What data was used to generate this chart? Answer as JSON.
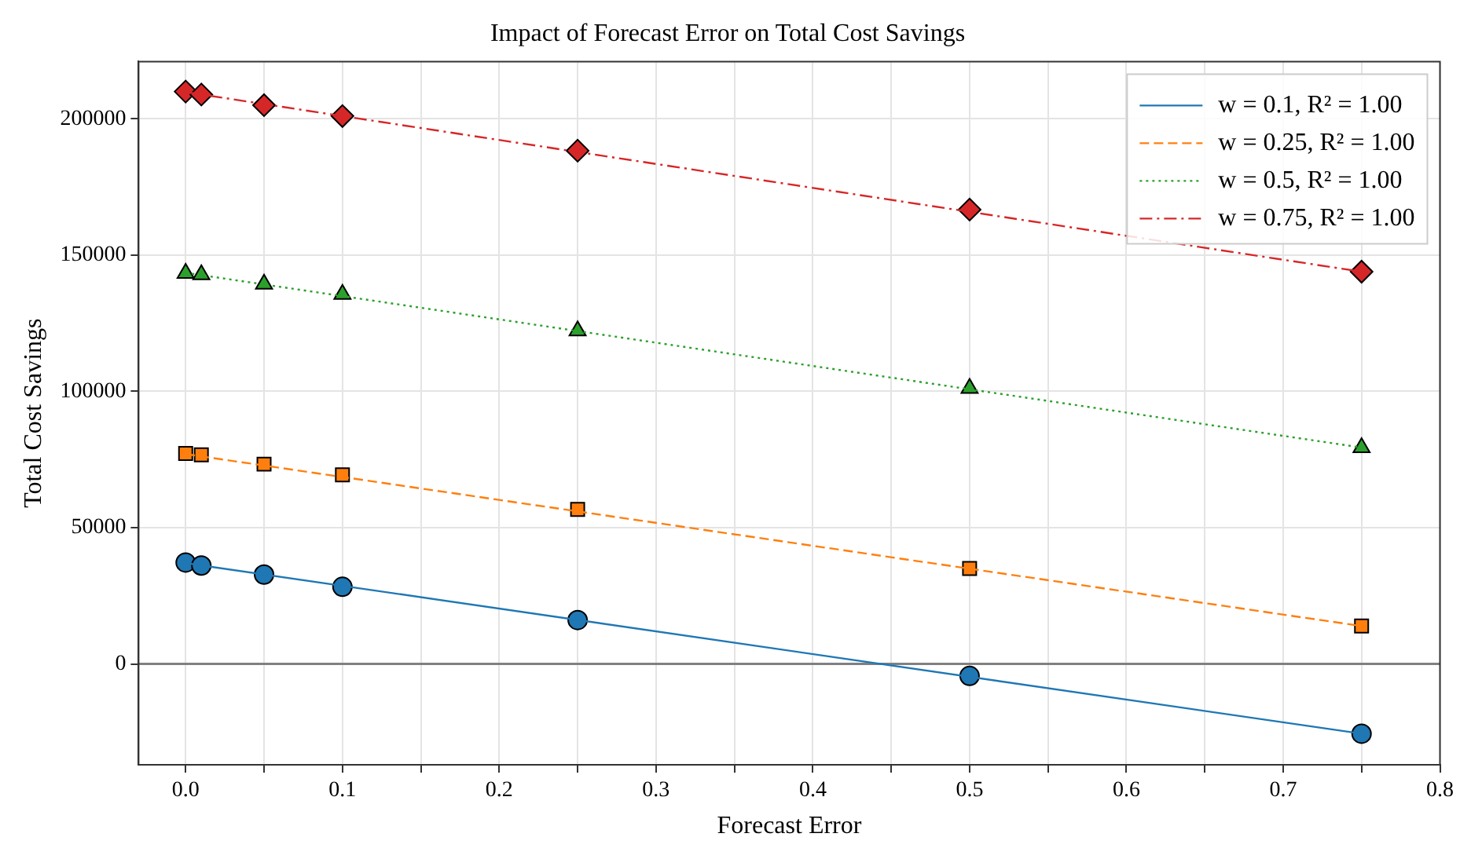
{
  "chart_data": {
    "type": "scatter",
    "title": "Impact of Forecast Error on Total Cost Savings",
    "xlabel": "Forecast Error",
    "ylabel": "Total Cost Savings",
    "xlim": [
      -0.03,
      0.8
    ],
    "ylim": [
      -37000,
      221000
    ],
    "xticks": [
      {
        "value": 0,
        "label": "0.0"
      },
      {
        "value": 0.05,
        "label": null
      },
      0.1,
      {
        "value": 0.15,
        "label": null
      },
      0.2,
      {
        "value": 0.25,
        "label": null
      },
      0.3,
      {
        "value": 0.35,
        "label": null
      },
      0.4,
      {
        "value": 0.45,
        "label": null
      },
      0.5,
      {
        "value": 0.55,
        "label": null
      },
      0.6,
      {
        "value": 0.65,
        "label": null
      },
      0.7,
      {
        "value": 0.75,
        "label": null
      },
      0.8
    ],
    "yticks": [
      0,
      50000,
      100000,
      150000,
      200000
    ],
    "grid": true,
    "legend": "top right",
    "ref_lines": [
      {
        "axis": "y",
        "value": 0,
        "color": "#808080"
      }
    ],
    "series": [
      {
        "name": "w = 0.1, R² = 1.00",
        "type": "line",
        "color": "#1f77b4",
        "marker": "none",
        "line_style": "solid",
        "x": [
          0,
          0.75
        ],
        "values": [
          37000,
          -25600
        ]
      },
      {
        "name": "w = 0.25, R² = 1.00",
        "type": "line",
        "color": "#ff7f0e",
        "marker": "none",
        "line_style": "dashed",
        "x": [
          0,
          0.75
        ],
        "values": [
          77000,
          13900
        ]
      },
      {
        "name": "w = 0.5, R² = 1.00",
        "type": "line",
        "color": "#2ca02c",
        "marker": "none",
        "line_style": "dotted",
        "x": [
          0,
          0.75
        ],
        "values": [
          143500,
          79400
        ]
      },
      {
        "name": "w = 0.75, R² = 1.00",
        "type": "line",
        "color": "#d62728",
        "marker": "none",
        "line_style": "dashdot",
        "x": [
          0,
          0.75
        ],
        "values": [
          209800,
          143900
        ]
      },
      {
        "color": "#1f77b4",
        "marker": "circle",
        "x": [
          0,
          0.01,
          0.05,
          0.1,
          0.25,
          0.5,
          0.75
        ],
        "values": [
          37200,
          36100,
          32800,
          28300,
          16100,
          -4400,
          -25600
        ]
      },
      {
        "color": "#ff7f0e",
        "marker": "square",
        "x": [
          0,
          0.01,
          0.05,
          0.1,
          0.25,
          0.5,
          0.75
        ],
        "values": [
          77200,
          76700,
          73300,
          69400,
          56700,
          35000,
          13900
        ]
      },
      {
        "color": "#2ca02c",
        "marker": "triangle",
        "x": [
          0,
          0.01,
          0.05,
          0.1,
          0.25,
          0.5,
          0.75
        ],
        "values": [
          143300,
          142800,
          139400,
          135600,
          122200,
          101100,
          79400
        ]
      },
      {
        "color": "#d62728",
        "marker": "diamond",
        "x": [
          0,
          0.01,
          0.05,
          0.1,
          0.25,
          0.5,
          0.75
        ],
        "values": [
          210000,
          208900,
          205000,
          201000,
          188300,
          166700,
          143900
        ]
      }
    ]
  }
}
